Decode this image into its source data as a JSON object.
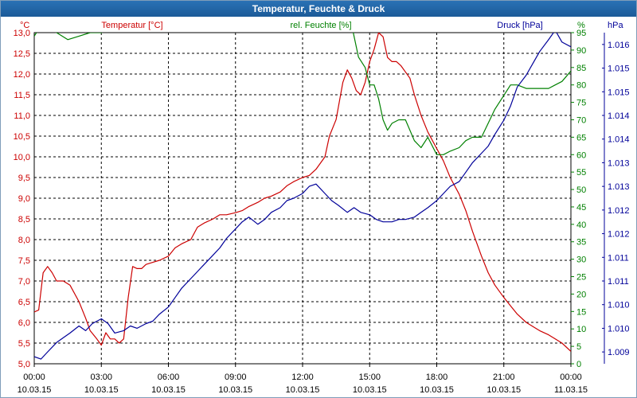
{
  "window": {
    "title": "Temperatur, Feuchte & Druck"
  },
  "colors": {
    "temperature": "#cc0000",
    "humidity": "#008000",
    "pressure": "#000099",
    "grid": "#000000"
  },
  "chart_data": {
    "type": "line",
    "title": "Temperatur, Feuchte & Druck",
    "x_ticks": [
      {
        "time": "00:00",
        "date": "10.03.15"
      },
      {
        "time": "03:00",
        "date": "10.03.15"
      },
      {
        "time": "06:00",
        "date": "10.03.15"
      },
      {
        "time": "09:00",
        "date": "10.03.15"
      },
      {
        "time": "12:00",
        "date": "10.03.15"
      },
      {
        "time": "15:00",
        "date": "10.03.15"
      },
      {
        "time": "18:00",
        "date": "10.03.15"
      },
      {
        "time": "21:00",
        "date": "10.03.15"
      },
      {
        "time": "00:00",
        "date": "11.03.15"
      }
    ],
    "x_unit": "hours",
    "xlim": [
      0,
      24
    ],
    "grid": true,
    "axes": {
      "temperature": {
        "label": "Temperatur [°C]",
        "unit": "°C",
        "side": "left",
        "ylim": [
          5.0,
          13.0
        ],
        "ticks": [
          "5,0",
          "5,5",
          "6,0",
          "6,5",
          "7,0",
          "7,5",
          "8,0",
          "8,5",
          "9,0",
          "9,5",
          "10,0",
          "10,5",
          "11,0",
          "11,5",
          "12,0",
          "12,5",
          "13,0"
        ]
      },
      "humidity": {
        "label": "rel. Feuchte [%]",
        "unit": "%",
        "side": "right-inner",
        "ylim": [
          0,
          95
        ],
        "ticks": [
          "0",
          "5",
          "10",
          "15",
          "20",
          "25",
          "30",
          "35",
          "40",
          "45",
          "50",
          "55",
          "60",
          "65",
          "70",
          "75",
          "80",
          "85",
          "90",
          "95"
        ]
      },
      "pressure": {
        "label": "Druck [hPa]",
        "unit": "hPa",
        "side": "right-outer",
        "ylim": [
          1009,
          1016
        ],
        "ticks": [
          "1.009",
          "1.010",
          "1.010",
          "1.011",
          "1.011",
          "1.012",
          "1.012",
          "1.013",
          "1.013",
          "1.014",
          "1.014",
          "1.015",
          "1.015",
          "1.016"
        ]
      }
    },
    "series": [
      {
        "name": "Temperatur [°C]",
        "axis": "temperature",
        "x": [
          0,
          0.2,
          0.4,
          0.6,
          0.8,
          1.0,
          1.3,
          1.6,
          2.0,
          2.3,
          2.5,
          2.8,
          3.0,
          3.2,
          3.4,
          3.6,
          3.8,
          4.0,
          4.2,
          4.4,
          4.6,
          4.8,
          5.0,
          5.3,
          5.6,
          6.0,
          6.3,
          6.6,
          7.0,
          7.3,
          7.6,
          8.0,
          8.3,
          8.6,
          9.0,
          9.3,
          9.6,
          10.0,
          10.3,
          10.6,
          11.0,
          11.3,
          11.6,
          12.0,
          12.3,
          12.6,
          13.0,
          13.2,
          13.5,
          13.8,
          14.0,
          14.2,
          14.4,
          14.6,
          14.8,
          15.0,
          15.2,
          15.4,
          15.6,
          15.8,
          16.0,
          16.2,
          16.4,
          16.8,
          17.0,
          17.3,
          17.6,
          18.0,
          18.3,
          18.6,
          19.0,
          19.3,
          19.6,
          20.0,
          20.3,
          20.6,
          21.0,
          21.3,
          21.6,
          22.0,
          22.3,
          22.6,
          23.0,
          23.3,
          23.6,
          24.0
        ],
        "values": [
          6.25,
          6.3,
          7.2,
          7.35,
          7.2,
          7.0,
          7.0,
          6.9,
          6.5,
          6.1,
          5.8,
          5.6,
          5.45,
          5.75,
          5.6,
          5.6,
          5.5,
          5.6,
          6.6,
          7.35,
          7.3,
          7.3,
          7.4,
          7.45,
          7.5,
          7.6,
          7.8,
          7.9,
          8.0,
          8.3,
          8.4,
          8.5,
          8.6,
          8.6,
          8.65,
          8.7,
          8.8,
          8.9,
          9.0,
          9.05,
          9.15,
          9.3,
          9.4,
          9.5,
          9.55,
          9.7,
          10.0,
          10.5,
          10.9,
          11.8,
          12.1,
          11.9,
          11.6,
          11.5,
          11.8,
          12.3,
          12.6,
          13.0,
          12.9,
          12.4,
          12.3,
          12.3,
          12.2,
          11.9,
          11.5,
          11.0,
          10.6,
          10.2,
          9.9,
          9.5,
          9.1,
          8.7,
          8.2,
          7.6,
          7.2,
          6.9,
          6.6,
          6.4,
          6.2,
          6.0,
          5.9,
          5.8,
          5.7,
          5.6,
          5.5,
          5.3
        ]
      },
      {
        "name": "rel. Feuchte [%]",
        "axis": "humidity",
        "x": [
          0,
          0.3,
          0.6,
          1.0,
          1.5,
          2.0,
          2.5,
          3.0,
          3.5,
          4.0,
          4.5,
          5.0,
          5.5,
          6.0,
          6.5,
          7.0,
          7.5,
          8.0,
          8.5,
          9.0,
          9.5,
          10.0,
          10.5,
          11.0,
          11.5,
          12.0,
          12.5,
          13.0,
          13.5,
          13.8,
          14.0,
          14.2,
          14.5,
          14.8,
          15.0,
          15.2,
          15.4,
          15.6,
          15.8,
          16.0,
          16.3,
          16.6,
          17.0,
          17.3,
          17.6,
          18.0,
          18.3,
          18.6,
          19.0,
          19.3,
          19.6,
          20.0,
          20.3,
          20.6,
          21.0,
          21.3,
          21.6,
          22.0,
          22.3,
          22.6,
          23.0,
          23.3,
          23.6,
          24.0
        ],
        "values": [
          94,
          97,
          96,
          95,
          93,
          94,
          95,
          95,
          96,
          97,
          98,
          97,
          97,
          97,
          98,
          98,
          99,
          100,
          100,
          100,
          100,
          100,
          100,
          100,
          100,
          100,
          100,
          100,
          100,
          100,
          100,
          97,
          88,
          85,
          80,
          80,
          76,
          70,
          67,
          69,
          70,
          70,
          64,
          62,
          65,
          60,
          60,
          61,
          62,
          64,
          65,
          65,
          69,
          73,
          77,
          80,
          80,
          79,
          79,
          79,
          79,
          80,
          81,
          84
        ]
      },
      {
        "name": "Druck [hPa]",
        "axis": "pressure",
        "x": [
          0,
          0.3,
          0.6,
          1.0,
          1.3,
          1.6,
          2.0,
          2.3,
          2.6,
          3.0,
          3.3,
          3.6,
          4.0,
          4.3,
          4.6,
          5.0,
          5.3,
          5.6,
          6.0,
          6.3,
          6.6,
          7.0,
          7.3,
          7.6,
          8.0,
          8.3,
          8.6,
          9.0,
          9.3,
          9.6,
          10.0,
          10.3,
          10.6,
          11.0,
          11.3,
          11.6,
          12.0,
          12.3,
          12.6,
          13.0,
          13.3,
          13.6,
          14.0,
          14.3,
          14.6,
          15.0,
          15.3,
          15.6,
          16.0,
          16.3,
          16.6,
          17.0,
          17.3,
          17.6,
          18.0,
          18.3,
          18.6,
          19.0,
          19.3,
          19.6,
          20.0,
          20.3,
          20.6,
          21.0,
          21.3,
          21.6,
          22.0,
          22.3,
          22.6,
          23.0,
          23.3,
          23.6,
          24.0
        ],
        "values": [
          1009.15,
          1009.1,
          1009.25,
          1009.45,
          1009.55,
          1009.65,
          1009.8,
          1009.7,
          1009.85,
          1009.95,
          1009.85,
          1009.65,
          1009.7,
          1009.8,
          1009.75,
          1009.85,
          1009.9,
          1010.05,
          1010.2,
          1010.4,
          1010.6,
          1010.8,
          1010.95,
          1011.1,
          1011.3,
          1011.45,
          1011.65,
          1011.85,
          1012.0,
          1012.1,
          1011.95,
          1012.05,
          1012.2,
          1012.3,
          1012.45,
          1012.5,
          1012.6,
          1012.75,
          1012.8,
          1012.6,
          1012.45,
          1012.35,
          1012.2,
          1012.3,
          1012.2,
          1012.15,
          1012.05,
          1012.0,
          1012.0,
          1012.05,
          1012.05,
          1012.1,
          1012.2,
          1012.3,
          1012.45,
          1012.6,
          1012.75,
          1012.85,
          1013.05,
          1013.25,
          1013.45,
          1013.6,
          1013.85,
          1014.15,
          1014.45,
          1014.85,
          1015.1,
          1015.35,
          1015.6,
          1015.85,
          1016.05,
          1015.8,
          1015.7
        ]
      }
    ]
  }
}
